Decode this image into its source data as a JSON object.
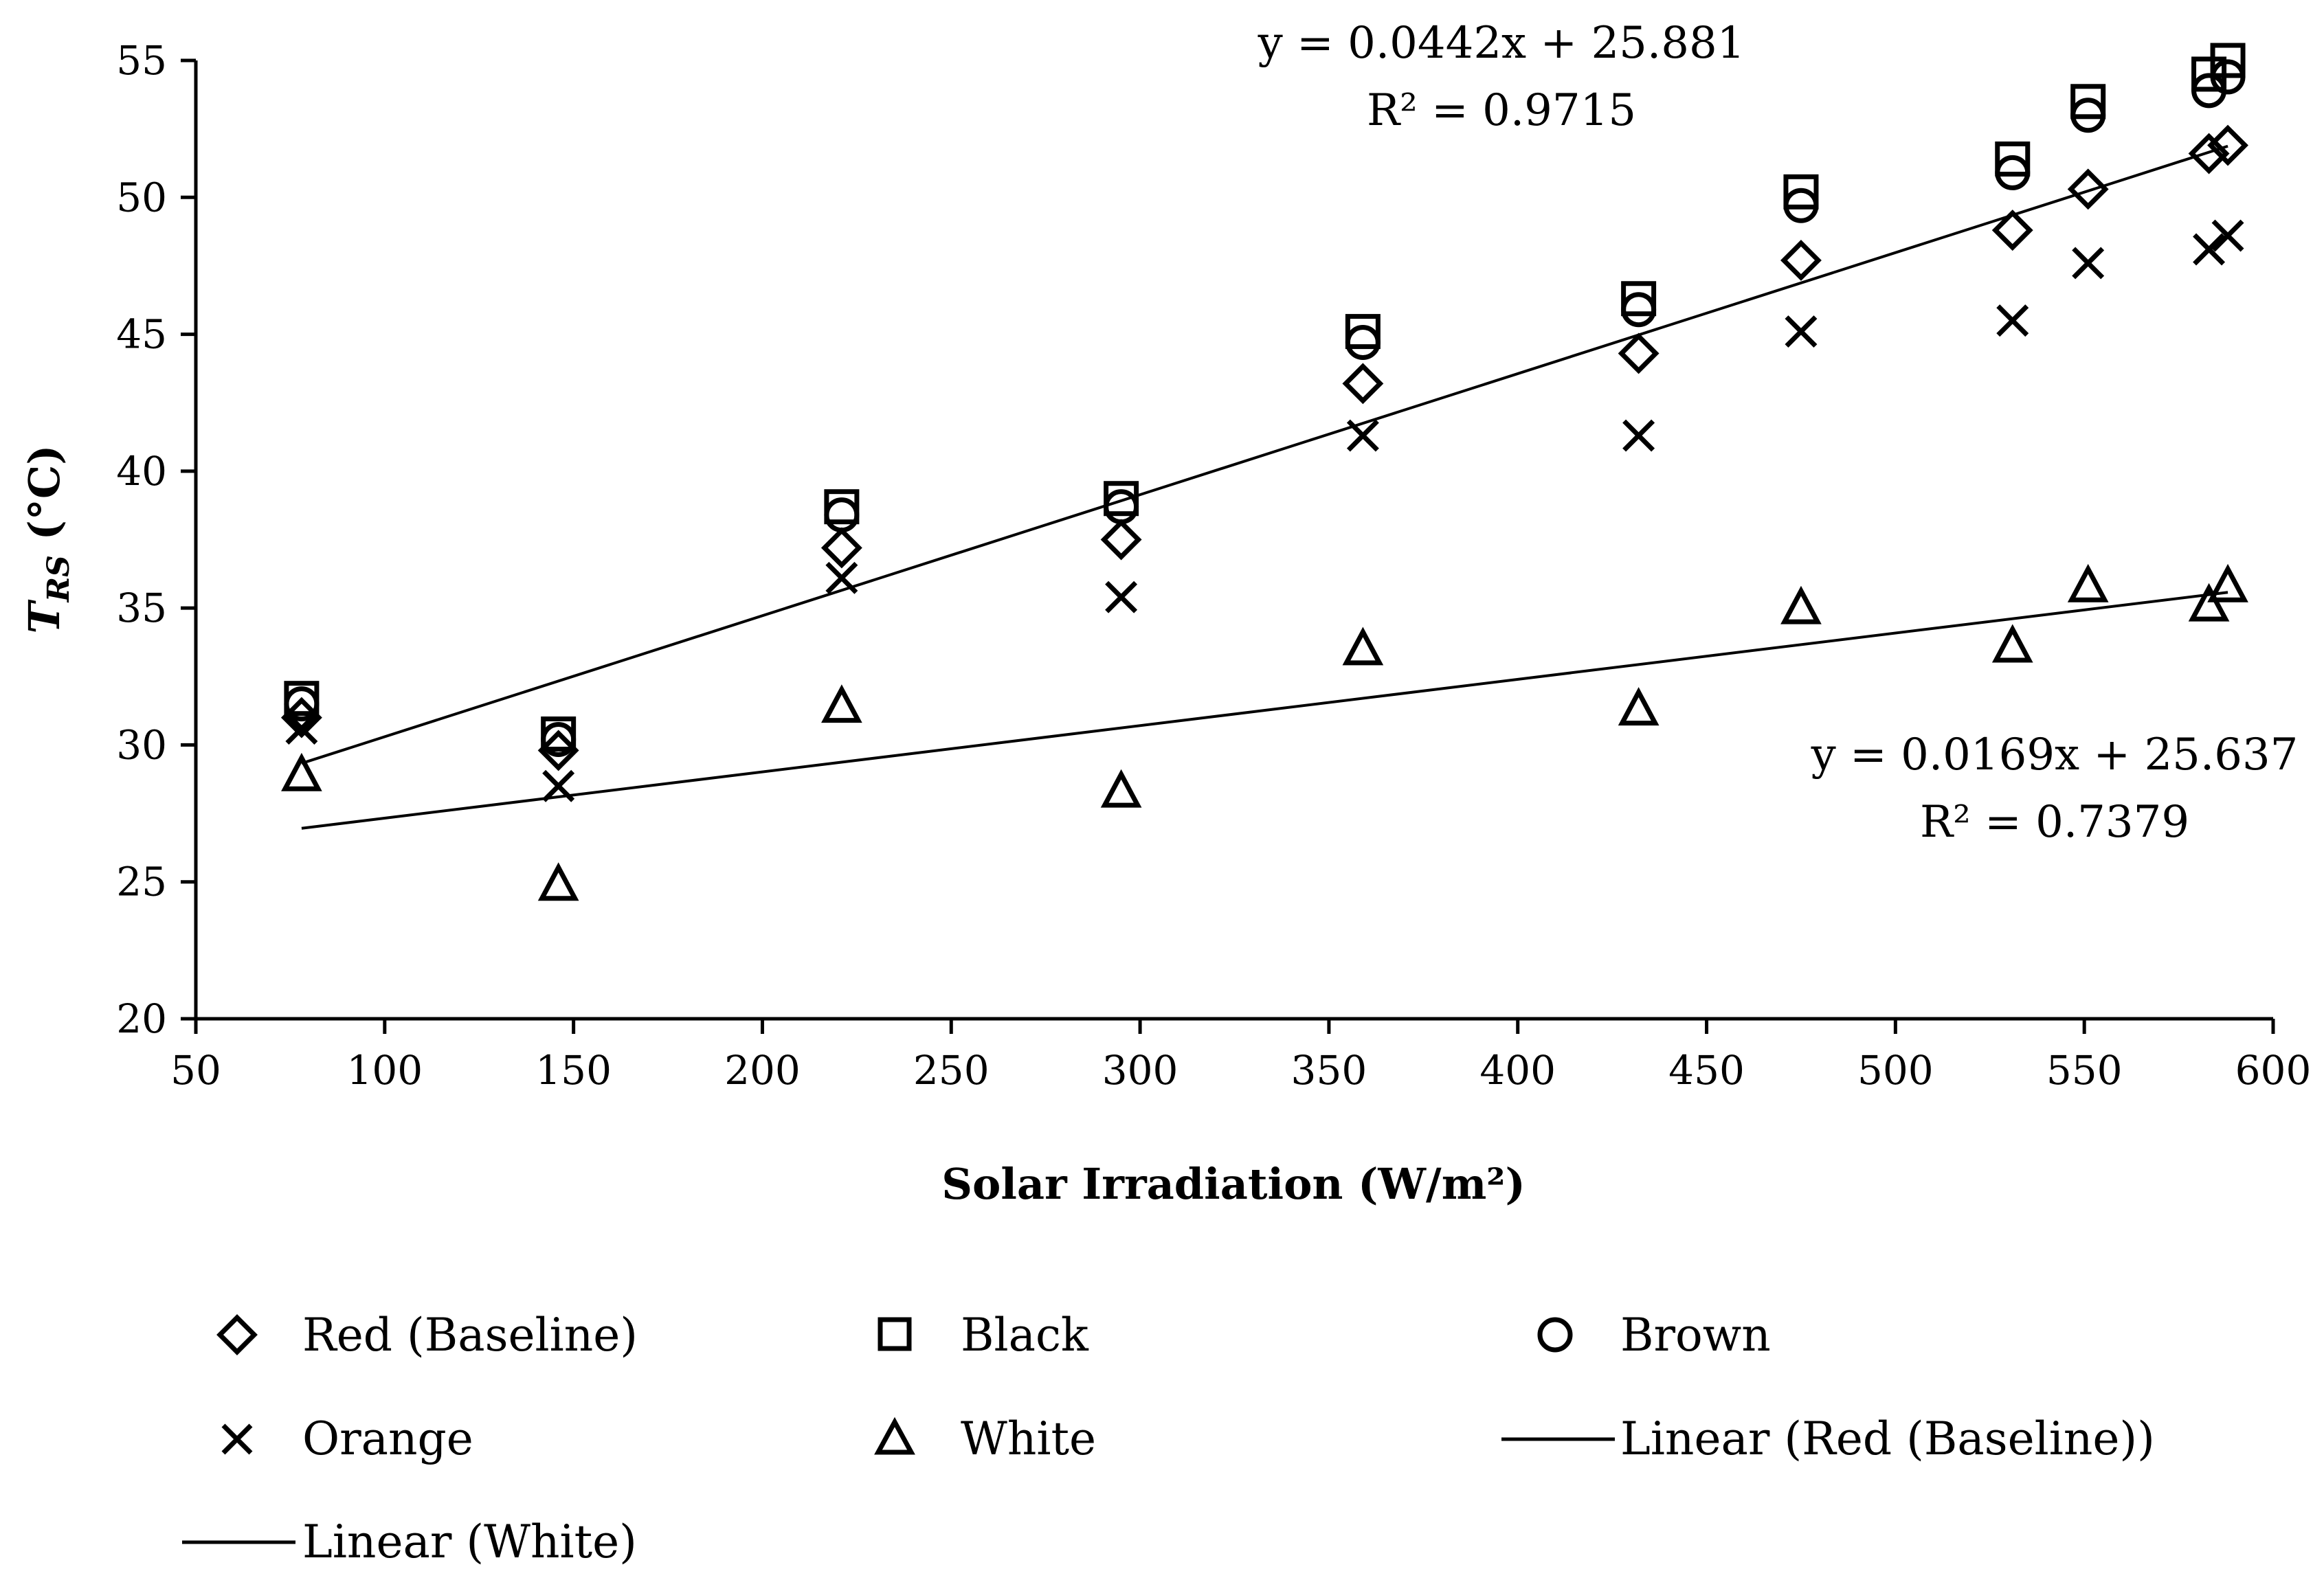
{
  "chart_data": {
    "type": "scatter",
    "title": "",
    "xlabel": "Solar Irradiation (W/m²)",
    "ylabel_main": "T",
    "ylabel_sub": "RS",
    "ylabel_unit": " (°C)",
    "xlim": [
      50,
      600
    ],
    "ylim": [
      20,
      55
    ],
    "xticks": [
      50,
      100,
      150,
      200,
      250,
      300,
      350,
      400,
      450,
      500,
      550,
      600
    ],
    "yticks": [
      20,
      25,
      30,
      35,
      40,
      45,
      50,
      55
    ],
    "grid": false,
    "legend_position": "bottom",
    "series": [
      {
        "name": "Red (Baseline)",
        "marker": "diamond",
        "x": [
          78,
          146,
          221,
          295,
          359,
          432,
          475,
          531,
          551,
          583,
          588
        ],
        "y": [
          31,
          29.8,
          37.2,
          37.5,
          43.2,
          44.3,
          47.7,
          48.8,
          50.3,
          51.6,
          51.9
        ]
      },
      {
        "name": "Black",
        "marker": "square",
        "x": [
          78,
          146,
          221,
          295,
          359,
          432,
          475,
          531,
          551,
          583,
          588
        ],
        "y": [
          31.7,
          30.4,
          38.7,
          39.0,
          45.1,
          46.3,
          50.2,
          51.4,
          53.5,
          54.5,
          55.0
        ]
      },
      {
        "name": "Brown",
        "marker": "circle",
        "x": [
          78,
          146,
          221,
          295,
          359,
          432,
          475,
          531,
          551,
          583,
          588
        ],
        "y": [
          31.5,
          30.2,
          38.4,
          38.7,
          44.7,
          45.9,
          49.7,
          50.9,
          53.0,
          53.9,
          54.4
        ]
      },
      {
        "name": "Orange",
        "marker": "x",
        "x": [
          78,
          146,
          221,
          295,
          359,
          432,
          475,
          531,
          551,
          583,
          588
        ],
        "y": [
          30.6,
          28.5,
          36.1,
          35.4,
          41.3,
          41.3,
          45.1,
          45.5,
          47.6,
          48.1,
          48.6
        ]
      },
      {
        "name": "White",
        "marker": "triangle",
        "x": [
          78,
          146,
          221,
          295,
          359,
          432,
          475,
          531,
          551,
          583,
          588
        ],
        "y": [
          28.9,
          24.9,
          31.4,
          28.3,
          33.5,
          31.3,
          35.0,
          33.6,
          35.8,
          35.1,
          35.8
        ]
      }
    ],
    "trendlines": [
      {
        "name": "Linear (Red (Baseline))",
        "slope": 0.0442,
        "intercept": 25.881,
        "x_range": [
          78,
          588
        ],
        "equation": "y = 0.0442x + 25.881",
        "r2": "R² = 0.9715"
      },
      {
        "name": "Linear (White)",
        "slope": 0.0169,
        "intercept": 25.637,
        "x_range": [
          78,
          588
        ],
        "equation": "y = 0.0169x + 25.637",
        "r2": "R² = 0.7379"
      }
    ],
    "legend": [
      {
        "label": "Red (Baseline)",
        "symbol": "diamond"
      },
      {
        "label": "Black",
        "symbol": "square"
      },
      {
        "label": "Brown",
        "symbol": "circle"
      },
      {
        "label": "Orange",
        "symbol": "x"
      },
      {
        "label": "White",
        "symbol": "triangle"
      },
      {
        "label": "Linear (Red (Baseline))",
        "symbol": "line"
      },
      {
        "label": "Linear (White)",
        "symbol": "line"
      }
    ]
  }
}
